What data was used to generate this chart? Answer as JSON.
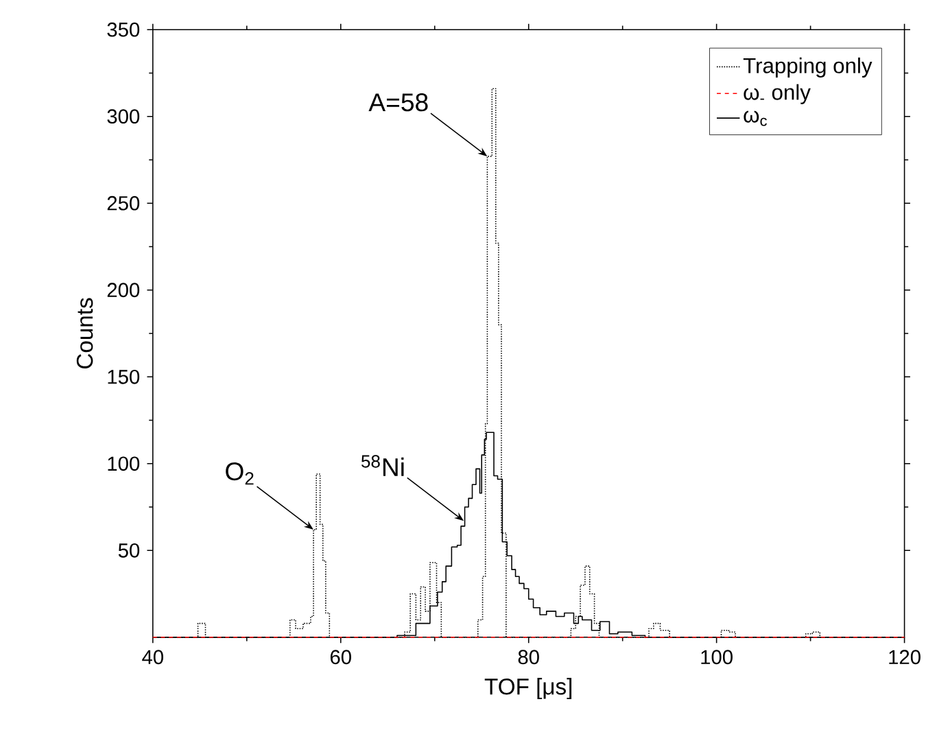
{
  "chart_data": {
    "type": "step",
    "xlabel": "TOF [μs]",
    "ylabel": "Counts",
    "xlim": [
      40,
      120
    ],
    "ylim": [
      0,
      350
    ],
    "xticks": [
      40,
      60,
      80,
      100,
      120
    ],
    "yticks": [
      50,
      100,
      150,
      200,
      250,
      300,
      350
    ],
    "legend": "top right",
    "series": [
      {
        "name": "Trapping only",
        "color": "#000000",
        "line_style": "dotted",
        "x": [
          40,
          44.8,
          45.6,
          54.6,
          55.2,
          56,
          56.8,
          57.1,
          57.4,
          57.8,
          58.1,
          58.4,
          58.8,
          66.8,
          67.4,
          68,
          68.5,
          69,
          69.5,
          70.2,
          70.7,
          74.6,
          75.1,
          75.4,
          75.6,
          76.1,
          76.5,
          76.8,
          77.1,
          77.6,
          84.5,
          85,
          85.5,
          86,
          86.5,
          87,
          87.5,
          92.8,
          93.3,
          94,
          95,
          100.5,
          101.3,
          102,
          109.5,
          110.2,
          111,
          120
        ],
        "values": [
          0,
          8,
          0,
          10,
          5,
          8,
          12,
          62,
          94,
          65,
          44,
          14,
          0,
          3,
          25,
          10,
          29,
          15,
          43,
          20,
          0,
          10,
          35,
          123,
          277,
          316,
          227,
          180,
          60,
          0,
          5,
          12,
          30,
          41,
          25,
          8,
          0,
          5,
          8,
          4,
          0,
          4,
          3,
          0,
          2,
          3,
          0,
          0
        ]
      },
      {
        "name": "ω$_{-}$ only",
        "color": "#ff0000",
        "line_style": "dashed",
        "x": [
          40,
          120
        ],
        "values": [
          0,
          0
        ]
      },
      {
        "name": "ω$_{c}$",
        "color": "#000000",
        "line_style": "solid",
        "x": [
          40,
          66,
          68,
          69.5,
          70.3,
          70.8,
          71.2,
          71.8,
          72.4,
          72.8,
          73.2,
          73.6,
          74.0,
          74.4,
          74.8,
          75.0,
          75.3,
          75.5,
          75.8,
          76.3,
          76.7,
          77.2,
          77.7,
          78.2,
          78.6,
          79.0,
          79.5,
          80.0,
          80.5,
          81.2,
          81.9,
          82.9,
          83.8,
          84.8,
          85.3,
          85.7,
          86.7,
          87.6,
          88.6,
          89.5,
          91,
          92.4,
          93,
          120
        ],
        "values": [
          0,
          1,
          8,
          18,
          26,
          32,
          41,
          52,
          53,
          64,
          75,
          80,
          88,
          97,
          83,
          105,
          114,
          118,
          118,
          93,
          91,
          55,
          47,
          39,
          35,
          31,
          28,
          22,
          17,
          13,
          15,
          12,
          14,
          8,
          12,
          10,
          4,
          9,
          2,
          3,
          1,
          0,
          0,
          0
        ]
      }
    ],
    "annotations": [
      {
        "text": "O$_{2}$",
        "x": 57.1,
        "y": 62
      },
      {
        "text": "A=58",
        "x": 75.6,
        "y": 277
      },
      {
        "text": "$^{58}$Ni",
        "x": 73.1,
        "y": 67
      }
    ]
  }
}
